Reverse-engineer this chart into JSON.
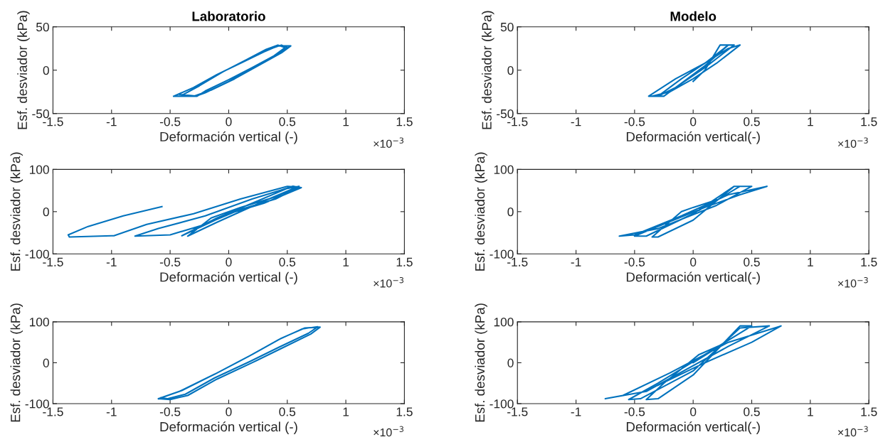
{
  "chart_data": [
    {
      "type": "line",
      "title": "Laboratorio",
      "xlabel": "Deformación vertical (-)",
      "ylabel": "Esf. desviador (kPa)",
      "xlim": [
        -1.5,
        1.5
      ],
      "xticks": [
        -1.5,
        -1,
        -0.5,
        0,
        0.5,
        1,
        1.5
      ],
      "ylim": [
        -50,
        50
      ],
      "yticks": [
        -50,
        0,
        50
      ],
      "annotations": [
        "×10$^{−3}$"
      ],
      "series": [
        {
          "color": "#0072bd",
          "x": [
            -0.47,
            -0.3,
            -0.1,
            0.1,
            0.3,
            0.42,
            0.53,
            0.45,
            0.25,
            0.05,
            -0.15,
            -0.3,
            -0.47,
            -0.3,
            -0.1,
            0.1,
            0.3,
            0.45,
            0.5,
            0.4,
            0.2,
            0,
            -0.2,
            -0.28,
            -0.4,
            -0.25,
            -0.05,
            0.15,
            0.32,
            0.42,
            0.48,
            0.38,
            0.2,
            0,
            -0.2,
            -0.27,
            -0.42
          ],
          "values": [
            -30,
            -20,
            -5,
            8,
            21,
            28,
            28,
            20,
            5,
            -10,
            -23,
            -30,
            -30,
            -20,
            -5,
            8,
            22,
            29,
            26,
            17,
            2,
            -13,
            -26,
            -30,
            -29,
            -18,
            -2,
            12,
            24,
            29,
            26,
            16,
            3,
            -11,
            -24,
            -30,
            -28
          ]
        }
      ]
    },
    {
      "type": "line",
      "title": "Modelo",
      "xlabel": "Deformación vertical(-)",
      "ylabel": "Esf. desviador (kPa)",
      "xlim": [
        -1.5,
        1.5
      ],
      "xticks": [
        -1.5,
        -1,
        -0.5,
        0,
        0.5,
        1,
        1.5
      ],
      "ylim": [
        -50,
        50
      ],
      "yticks": [
        -50,
        0,
        50
      ],
      "annotations": [
        "×10$^{−3}$"
      ],
      "series": [
        {
          "color": "#0072bd",
          "x": [
            0,
            0.1,
            0.23,
            0.3,
            0.1,
            -0.1,
            -0.25,
            -0.3,
            -0.1,
            0.1,
            0.3,
            0.35,
            0.1,
            -0.15,
            -0.3,
            -0.38,
            -0.15,
            0.1,
            0.3,
            0.4,
            0.2,
            0,
            -0.2,
            -0.35
          ],
          "values": [
            -13,
            0,
            29,
            29,
            5,
            -15,
            -30,
            -30,
            -10,
            8,
            29,
            29,
            3,
            -20,
            -30,
            -30,
            -10,
            8,
            25,
            29,
            8,
            -10,
            -25,
            -30
          ]
        }
      ]
    },
    {
      "type": "line",
      "xlabel": "Deformación vertical (-)",
      "ylabel": "Esf. desviador (kPa)",
      "xlim": [
        -1.5,
        1.5
      ],
      "xticks": [
        -1.5,
        -1,
        -0.5,
        0,
        0.5,
        1,
        1.5
      ],
      "ylim": [
        -100,
        100
      ],
      "yticks": [
        -100,
        0,
        100
      ],
      "annotations": [
        "×10$^{−3}$"
      ],
      "series": [
        {
          "color": "#0072bd",
          "x": [
            -0.57,
            -0.9,
            -1.2,
            -1.37,
            -1.36,
            -1.0,
            -0.98,
            -0.7,
            -0.3,
            0.1,
            0.5,
            0.6,
            0.4,
            0.1,
            -0.2,
            -0.5,
            -0.8,
            -0.6,
            -0.2,
            0.2,
            0.55,
            0.62,
            0.3,
            0,
            -0.4,
            -0.1,
            0.2,
            0.5,
            0.6,
            0.4,
            0.1,
            -0.15,
            -0.35,
            -0.1,
            0.3,
            0.58
          ],
          "values": [
            12,
            -10,
            -35,
            -55,
            -60,
            -57,
            -57,
            -30,
            -5,
            30,
            60,
            58,
            30,
            5,
            -30,
            -55,
            -58,
            -40,
            -10,
            30,
            60,
            57,
            20,
            -5,
            -57,
            -15,
            20,
            55,
            60,
            35,
            10,
            -15,
            -58,
            -25,
            25,
            58
          ]
        }
      ]
    },
    {
      "type": "line",
      "xlabel": "Deformación vertical(-)",
      "ylabel": "Esf. desviador (kPa)",
      "xlim": [
        -1.5,
        1.5
      ],
      "xticks": [
        -1.5,
        -1,
        -0.5,
        0,
        0.5,
        1,
        1.5
      ],
      "ylim": [
        -100,
        100
      ],
      "yticks": [
        -100,
        0,
        100
      ],
      "annotations": [
        "×10$^{−3}$"
      ],
      "series": [
        {
          "color": "#0072bd",
          "x": [
            0.05,
            0.2,
            0.0,
            -0.1,
            -0.35,
            -0.3,
            0.0,
            0.35,
            0.4,
            0.1,
            -0.3,
            -0.5,
            -0.4,
            0,
            0.35,
            0.5,
            0.2,
            -0.3,
            -0.63,
            -0.5,
            -0.1,
            0.3,
            0.63,
            0.4,
            0.1,
            -0.3
          ],
          "values": [
            3,
            28,
            10,
            0,
            -60,
            -60,
            -20,
            60,
            60,
            10,
            -35,
            -58,
            -58,
            -5,
            60,
            60,
            15,
            -40,
            -58,
            -55,
            -10,
            40,
            60,
            40,
            10,
            -35
          ]
        }
      ]
    },
    {
      "type": "line",
      "xlabel": "Deformación vertical (-)",
      "ylabel": "Esf. desviador (kPa)",
      "xlim": [
        -1.5,
        1.5
      ],
      "xticks": [
        -1.5,
        -1,
        -0.5,
        0,
        0.5,
        1,
        1.5
      ],
      "ylim": [
        -100,
        100
      ],
      "yticks": [
        -100,
        0,
        100
      ],
      "annotations": [
        "×10$^{−3}$"
      ],
      "series": [
        {
          "color": "#0072bd",
          "x": [
            -0.6,
            -0.4,
            -0.1,
            0.2,
            0.45,
            0.65,
            0.78,
            0.7,
            0.45,
            0.2,
            -0.1,
            -0.35,
            -0.5,
            -0.6,
            -0.42,
            -0.12,
            0.18,
            0.43,
            0.63,
            0.76,
            0.68,
            0.43,
            0.18,
            -0.12,
            -0.37,
            -0.52,
            -0.58
          ],
          "values": [
            -88,
            -68,
            -25,
            20,
            60,
            85,
            87,
            70,
            35,
            0,
            -40,
            -80,
            -90,
            -88,
            -70,
            -28,
            17,
            57,
            83,
            88,
            72,
            38,
            3,
            -37,
            -77,
            -88,
            -86
          ]
        }
      ]
    },
    {
      "type": "line",
      "xlabel": "Deformación vertical(-)",
      "ylabel": "Esf. desviador (kPa)",
      "xlim": [
        -1.5,
        1.5
      ],
      "xticks": [
        -1.5,
        -1,
        -0.5,
        0,
        0.5,
        1,
        1.5
      ],
      "ylim": [
        -100,
        100
      ],
      "yticks": [
        -100,
        0,
        100
      ],
      "annotations": [
        "×10$^{−3}$"
      ],
      "series": [
        {
          "color": "#0072bd",
          "x": [
            0,
            0.25,
            0.05,
            -0.25,
            -0.4,
            -0.3,
            0,
            0.4,
            0.5,
            0.1,
            -0.3,
            -0.55,
            -0.45,
            0,
            0.4,
            0.65,
            0.3,
            -0.4,
            -0.75,
            -0.6,
            -0.2,
            0.3,
            0.75,
            0.5,
            0.1,
            -0.3
          ],
          "values": [
            0,
            45,
            20,
            -50,
            -90,
            -88,
            -30,
            90,
            90,
            20,
            -50,
            -90,
            -88,
            -20,
            85,
            90,
            40,
            -70,
            -88,
            -80,
            -25,
            50,
            90,
            50,
            0,
            -55
          ]
        }
      ]
    }
  ]
}
